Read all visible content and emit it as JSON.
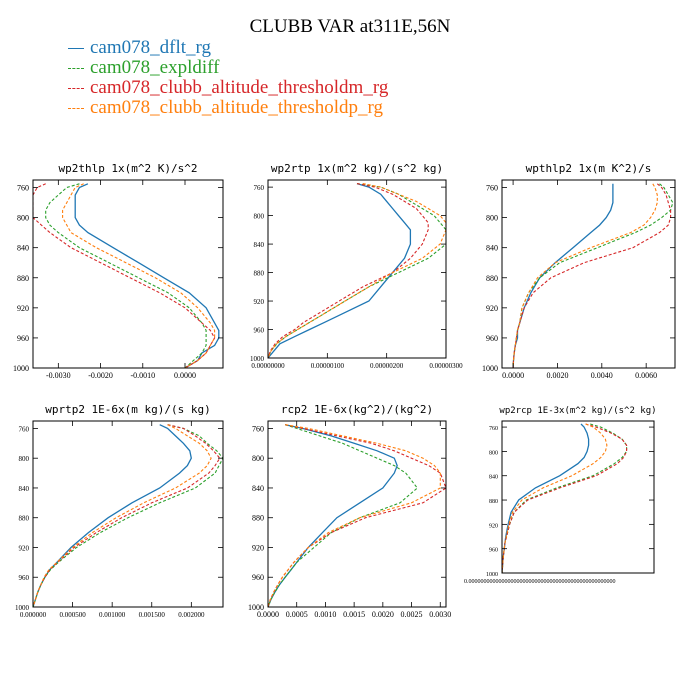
{
  "figure": {
    "title": "CLUBB VAR at311E,56N",
    "legend": [
      {
        "label": "cam078_dflt_rg",
        "color": "#1f77b4",
        "dash": false
      },
      {
        "label": "cam078_expldiff",
        "color": "#2ca02c",
        "dash": true
      },
      {
        "label": "cam078_clubb_altitude_thresholdm_rg",
        "color": "#d62728",
        "dash": true
      },
      {
        "label": "cam078_clubb_altitude_thresholdp_rg",
        "color": "#ff7f0e",
        "dash": true
      }
    ]
  },
  "chart_data": [
    {
      "type": "line",
      "title": "wp2thlp  1x(m^2 K)/s^2",
      "ylim": [
        1000,
        750
      ],
      "y_ticks": [
        "760",
        "800",
        "840",
        "880",
        "920",
        "960",
        "1000"
      ],
      "xlim": [
        -0.0036,
        0.0009
      ],
      "x_ticks": [
        "-0.0030",
        "-0.0020",
        "-0.0010",
        "0.0000"
      ],
      "x_tick_values": [
        -0.003,
        -0.002,
        -0.001,
        0.0
      ],
      "levels": [
        755,
        760,
        770,
        780,
        790,
        800,
        810,
        820,
        840,
        860,
        880,
        900,
        920,
        940,
        950,
        960,
        970,
        980,
        990,
        1000
      ],
      "series": [
        {
          "color": "#1f77b4",
          "dash": false,
          "values": [
            -0.0023,
            -0.0025,
            -0.0026,
            -0.0026,
            -0.0026,
            -0.0026,
            -0.0025,
            -0.0023,
            -0.0017,
            -0.0011,
            -0.0005,
            0.0001,
            0.0005,
            0.0007,
            0.0008,
            0.0008,
            0.0007,
            0.0004,
            0.0003,
            0.0
          ]
        },
        {
          "color": "#2ca02c",
          "dash": true,
          "values": [
            -0.0025,
            -0.0028,
            -0.003,
            -0.0032,
            -0.0033,
            -0.0033,
            -0.0032,
            -0.003,
            -0.0025,
            -0.0018,
            -0.0011,
            -0.0004,
            0.0001,
            0.0004,
            0.0005,
            0.0005,
            0.0005,
            0.0004,
            0.0002,
            0.0
          ]
        },
        {
          "color": "#d62728",
          "dash": true,
          "values": [
            -0.0033,
            -0.0035,
            -0.0036,
            -0.0036,
            -0.0036,
            -0.0036,
            -0.0034,
            -0.0032,
            -0.0027,
            -0.002,
            -0.0013,
            -0.0006,
            0.0,
            0.0004,
            0.0006,
            0.0007,
            0.0006,
            0.0005,
            0.0003,
            0.0
          ]
        },
        {
          "color": "#ff7f0e",
          "dash": true,
          "values": [
            -0.0024,
            -0.0026,
            -0.0027,
            -0.0028,
            -0.0029,
            -0.0029,
            -0.0028,
            -0.0027,
            -0.0021,
            -0.0014,
            -0.0007,
            -0.0001,
            0.0003,
            0.0006,
            0.0007,
            0.0007,
            0.0006,
            0.0005,
            0.0003,
            0.0
          ]
        }
      ]
    },
    {
      "type": "line",
      "title": "wp2rtp  1x(m^2 kg)/(s^2 kg)",
      "ylim": [
        1000,
        750
      ],
      "y_ticks": [
        "760",
        "800",
        "840",
        "880",
        "920",
        "960",
        "1000"
      ],
      "xlim": [
        0,
        3e-06
      ],
      "x_ticks": [
        "0.00000000",
        "0.00000100",
        "0.00000200",
        "0.00000300"
      ],
      "x_tick_values": [
        0,
        1e-06,
        2e-06,
        3e-06
      ],
      "levels": [
        755,
        760,
        770,
        780,
        790,
        800,
        810,
        820,
        840,
        860,
        880,
        900,
        920,
        940,
        950,
        960,
        970,
        980,
        990,
        1000
      ],
      "series": [
        {
          "color": "#1f77b4",
          "dash": false,
          "values": [
            1.5e-06,
            1.7e-06,
            1.9e-06,
            2e-06,
            2.1e-06,
            2.2e-06,
            2.3e-06,
            2.4e-06,
            2.4e-06,
            2.3e-06,
            2.1e-06,
            1.9e-06,
            1.7e-06,
            1.2e-06,
            9.5e-07,
            7e-07,
            4.5e-07,
            2e-07,
            1e-07,
            0.0
          ]
        },
        {
          "color": "#2ca02c",
          "dash": true,
          "values": [
            1.5e-06,
            1.9e-06,
            2.2e-06,
            2.4e-06,
            2.6e-06,
            2.8e-06,
            2.9e-06,
            3e-06,
            3e-06,
            2.7e-06,
            2.2e-06,
            1.7e-06,
            1.3e-06,
            9e-07,
            7e-07,
            5e-07,
            3e-07,
            1.5e-07,
            5e-08,
            0.0
          ]
        },
        {
          "color": "#d62728",
          "dash": true,
          "values": [
            1.5e-06,
            1.8e-06,
            2.1e-06,
            2.3e-06,
            2.5e-06,
            2.6e-06,
            2.7e-06,
            2.7e-06,
            2.6e-06,
            2.4e-06,
            2.1e-06,
            1.6e-06,
            1.2e-06,
            8e-07,
            6e-07,
            4.5e-07,
            2.5e-07,
            1.2e-07,
            4e-08,
            0.0
          ]
        },
        {
          "color": "#ff7f0e",
          "dash": true,
          "values": [
            1.6e-06,
            1.9e-06,
            2.2e-06,
            2.5e-06,
            2.7e-06,
            2.9e-06,
            3e-06,
            3e-06,
            2.9e-06,
            2.6e-06,
            2.1e-06,
            1.7e-06,
            1.3e-06,
            9e-07,
            7e-07,
            5e-07,
            3e-07,
            1.4e-07,
            5e-08,
            0.0
          ]
        }
      ]
    },
    {
      "type": "line",
      "title": "wpthlp2  1x(m K^2)/s",
      "ylim": [
        1000,
        750
      ],
      "y_ticks": [
        "760",
        "800",
        "840",
        "880",
        "920",
        "960",
        "1000"
      ],
      "xlim": [
        -0.0005,
        0.0073
      ],
      "x_ticks": [
        "0.0000",
        "0.0020",
        "0.0040",
        "0.0060"
      ],
      "x_tick_values": [
        0,
        0.002,
        0.004,
        0.006
      ],
      "levels": [
        755,
        760,
        770,
        780,
        790,
        800,
        810,
        820,
        840,
        860,
        880,
        900,
        920,
        940,
        950,
        960,
        970,
        980,
        990,
        1000
      ],
      "series": [
        {
          "color": "#1f77b4",
          "dash": false,
          "values": [
            0.0045,
            0.0045,
            0.0045,
            0.0045,
            0.0044,
            0.0042,
            0.0039,
            0.0035,
            0.0027,
            0.0019,
            0.0012,
            0.0008,
            0.0005,
            0.0003,
            0.0002,
            0.0002,
            0.0001,
            5e-05,
            2e-05,
            0.0
          ]
        },
        {
          "color": "#2ca02c",
          "dash": true,
          "values": [
            0.0066,
            0.0068,
            0.007,
            0.0072,
            0.0071,
            0.0067,
            0.0062,
            0.0055,
            0.0038,
            0.0021,
            0.0012,
            0.0007,
            0.0004,
            0.0003,
            0.0002,
            0.00015,
            0.0001,
            5e-05,
            2e-05,
            0.0
          ]
        },
        {
          "color": "#d62728",
          "dash": true,
          "values": [
            0.0065,
            0.0067,
            0.0069,
            0.007,
            0.0071,
            0.0071,
            0.007,
            0.0066,
            0.0054,
            0.0032,
            0.0017,
            0.0009,
            0.0005,
            0.0003,
            0.0002,
            0.00015,
            0.0001,
            5e-05,
            2e-05,
            0.0
          ]
        },
        {
          "color": "#ff7f0e",
          "dash": true,
          "values": [
            0.0063,
            0.0064,
            0.0065,
            0.0065,
            0.0064,
            0.0062,
            0.0059,
            0.0053,
            0.0035,
            0.0019,
            0.0011,
            0.0007,
            0.0004,
            0.0003,
            0.0002,
            0.00015,
            0.0001,
            5e-05,
            2e-05,
            0.0
          ]
        }
      ]
    },
    {
      "type": "line",
      "title": "wprtp2  1E-6x(m kg)/(s kg)",
      "ylim": [
        1000,
        750
      ],
      "y_ticks": [
        "760",
        "800",
        "840",
        "880",
        "920",
        "960",
        "1000"
      ],
      "xlim": [
        0,
        0.0024
      ],
      "x_ticks": [
        "0.000000",
        "0.000500",
        "0.001000",
        "0.001500",
        "0.002000"
      ],
      "x_tick_values": [
        0,
        0.0005,
        0.001,
        0.0015,
        0.002
      ],
      "levels": [
        755,
        760,
        770,
        780,
        790,
        800,
        810,
        820,
        840,
        860,
        880,
        900,
        920,
        940,
        950,
        960,
        970,
        980,
        990,
        1000
      ],
      "series": [
        {
          "color": "#1f77b4",
          "dash": false,
          "values": [
            0.0016,
            0.0017,
            0.0018,
            0.0019,
            0.00198,
            0.002,
            0.00195,
            0.00185,
            0.0016,
            0.00125,
            0.00095,
            0.0007,
            0.00048,
            0.0003,
            0.00021,
            0.00015,
            0.0001,
            6e-05,
            3e-05,
            0.0
          ]
        },
        {
          "color": "#2ca02c",
          "dash": true,
          "values": [
            0.0017,
            0.0019,
            0.0021,
            0.0022,
            0.00232,
            0.0024,
            0.00235,
            0.0023,
            0.00205,
            0.0016,
            0.0012,
            0.00085,
            0.00055,
            0.00032,
            0.00022,
            0.00015,
            0.0001,
            6e-05,
            3e-05,
            0.0
          ]
        },
        {
          "color": "#d62728",
          "dash": true,
          "values": [
            0.0017,
            0.0019,
            0.00205,
            0.00218,
            0.00228,
            0.00236,
            0.0023,
            0.00222,
            0.00195,
            0.0015,
            0.00112,
            0.0008,
            0.00052,
            0.00031,
            0.00021,
            0.00015,
            0.0001,
            6e-05,
            3e-05,
            0.0
          ]
        },
        {
          "color": "#ff7f0e",
          "dash": true,
          "values": [
            0.0017,
            0.0018,
            0.00195,
            0.0021,
            0.0022,
            0.00225,
            0.0022,
            0.0021,
            0.0018,
            0.0014,
            0.00105,
            0.00075,
            0.0005,
            0.0003,
            0.0002,
            0.00014,
            0.0001,
            6e-05,
            3e-05,
            0.0
          ]
        }
      ]
    },
    {
      "type": "line",
      "title": "rcp2  1E-6x(kg^2)/(kg^2)",
      "ylim": [
        1000,
        750
      ],
      "y_ticks": [
        "760",
        "800",
        "840",
        "880",
        "920",
        "960",
        "1000"
      ],
      "xlim": [
        0,
        0.0031
      ],
      "x_ticks": [
        "0.0000",
        "0.0005",
        "0.0010",
        "0.0015",
        "0.0020",
        "0.0025",
        "0.0030"
      ],
      "x_tick_values": [
        0,
        0.0005,
        0.001,
        0.0015,
        0.002,
        0.0025,
        0.003
      ],
      "levels": [
        755,
        760,
        770,
        780,
        790,
        800,
        810,
        820,
        840,
        860,
        880,
        900,
        920,
        940,
        950,
        960,
        970,
        980,
        990,
        1000
      ],
      "series": [
        {
          "color": "#1f77b4",
          "dash": false,
          "values": [
            0.0003,
            0.0006,
            0.0011,
            0.0015,
            0.0019,
            0.0022,
            0.00225,
            0.0022,
            0.002,
            0.0016,
            0.0012,
            0.00095,
            0.0007,
            0.0005,
            0.0004,
            0.0003,
            0.0002,
            0.00012,
            5e-05,
            0.0
          ]
        },
        {
          "color": "#2ca02c",
          "dash": true,
          "values": [
            0.0003,
            0.0005,
            0.0009,
            0.0013,
            0.0016,
            0.0019,
            0.0022,
            0.0024,
            0.0026,
            0.0023,
            0.0016,
            0.0011,
            0.0008,
            0.0005,
            0.0004,
            0.0003,
            0.0002,
            0.00012,
            5e-05,
            0.0
          ]
        },
        {
          "color": "#d62728",
          "dash": true,
          "values": [
            0.0003,
            0.0006,
            0.0012,
            0.0018,
            0.0022,
            0.0025,
            0.0028,
            0.003,
            0.0031,
            0.0027,
            0.0017,
            0.0011,
            0.0007,
            0.00045,
            0.00035,
            0.00025,
            0.00017,
            0.0001,
            4e-05,
            0.0
          ]
        },
        {
          "color": "#ff7f0e",
          "dash": true,
          "values": [
            0.0003,
            0.0007,
            0.0013,
            0.0019,
            0.0024,
            0.0027,
            0.0029,
            0.003,
            0.003,
            0.0025,
            0.0016,
            0.00105,
            0.0007,
            0.00045,
            0.00035,
            0.00025,
            0.00017,
            0.0001,
            4e-05,
            0.0
          ]
        }
      ]
    },
    {
      "type": "line",
      "title": "wp2rcp  1E-3x(m^2 kg)/(s^2 kg)",
      "ylim": [
        1000,
        750
      ],
      "y_ticks": [
        "760",
        "800",
        "840",
        "880",
        "920",
        "960",
        "1000"
      ],
      "xlim": [
        0,
        1
      ],
      "x_ticks": [
        "0.0000000000000000000000000000000000000000000000000"
      ],
      "x_tick_values": [
        0
      ],
      "levels": [
        755,
        760,
        770,
        780,
        790,
        800,
        810,
        820,
        840,
        860,
        880,
        900,
        920,
        940,
        950,
        960,
        970,
        980,
        990,
        1000
      ],
      "series": [
        {
          "color": "#1f77b4",
          "dash": false,
          "values": [
            0.52,
            0.54,
            0.56,
            0.57,
            0.57,
            0.56,
            0.54,
            0.5,
            0.38,
            0.22,
            0.11,
            0.06,
            0.04,
            0.025,
            0.02,
            0.015,
            0.01,
            0.006,
            0.003,
            0.0
          ]
        },
        {
          "color": "#2ca02c",
          "dash": true,
          "values": [
            0.58,
            0.65,
            0.73,
            0.79,
            0.82,
            0.82,
            0.79,
            0.74,
            0.6,
            0.36,
            0.16,
            0.08,
            0.05,
            0.03,
            0.02,
            0.015,
            0.01,
            0.006,
            0.003,
            0.0
          ]
        },
        {
          "color": "#d62728",
          "dash": true,
          "values": [
            0.55,
            0.62,
            0.72,
            0.79,
            0.82,
            0.82,
            0.8,
            0.76,
            0.62,
            0.38,
            0.17,
            0.08,
            0.05,
            0.03,
            0.02,
            0.015,
            0.01,
            0.006,
            0.003,
            0.0
          ]
        },
        {
          "color": "#ff7f0e",
          "dash": true,
          "values": [
            0.55,
            0.6,
            0.65,
            0.68,
            0.69,
            0.68,
            0.65,
            0.6,
            0.46,
            0.27,
            0.13,
            0.07,
            0.045,
            0.028,
            0.02,
            0.015,
            0.01,
            0.006,
            0.003,
            0.0
          ]
        }
      ]
    }
  ]
}
